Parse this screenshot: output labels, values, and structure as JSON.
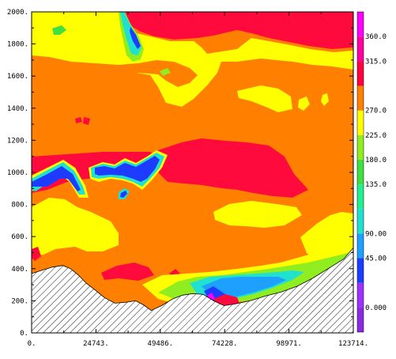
{
  "chart_data": {
    "type": "contour",
    "title": "",
    "xlabel": "",
    "ylabel": "",
    "xlim": [
      0,
      123714
    ],
    "ylim": [
      0,
      2000
    ],
    "x_ticks": [
      "0.",
      "24743.",
      "49486.",
      "74228.",
      "98971.",
      "123714."
    ],
    "y_ticks": [
      "0.",
      "200.",
      "400.",
      "600.",
      "800.",
      "1000.",
      "1200.",
      "1400.",
      "1600.",
      "1800.",
      "2000."
    ],
    "levels": [
      {
        "label": "0.000",
        "value": 0,
        "color": "#8a2be2"
      },
      {
        "label": "",
        "value": 22.5,
        "color": "#9b30ff"
      },
      {
        "label": "45.00",
        "value": 45,
        "color": "#1e3cff"
      },
      {
        "label": "90.00",
        "value": 90,
        "color": "#1ea0ff"
      },
      {
        "label": "",
        "value": 112.5,
        "color": "#20e0d0"
      },
      {
        "label": "135.0",
        "value": 135,
        "color": "#20f090"
      },
      {
        "label": "180.0",
        "value": 180,
        "color": "#40e040"
      },
      {
        "label": "225.0",
        "value": 225,
        "color": "#90ee20"
      },
      {
        "label": "270.0",
        "value": 270,
        "color": "#ffff00"
      },
      {
        "label": "",
        "value": 292.5,
        "color": "#ff7f00"
      },
      {
        "label": "315.0",
        "value": 315,
        "color": "#ff0040"
      },
      {
        "label": "360.0",
        "value": 360,
        "color": "#ff00a0"
      },
      {
        "label": "",
        "value": 405,
        "color": "#ff00ff"
      }
    ],
    "terrain": [
      [
        0,
        370
      ],
      [
        4000,
        390
      ],
      [
        8000,
        410
      ],
      [
        12000,
        420
      ],
      [
        15000,
        400
      ],
      [
        18000,
        360
      ],
      [
        21000,
        310
      ],
      [
        25000,
        260
      ],
      [
        28000,
        220
      ],
      [
        32000,
        185
      ],
      [
        36000,
        190
      ],
      [
        40000,
        200
      ],
      [
        43000,
        175
      ],
      [
        46000,
        140
      ],
      [
        50000,
        170
      ],
      [
        54000,
        210
      ],
      [
        58000,
        235
      ],
      [
        62000,
        245
      ],
      [
        66000,
        240
      ],
      [
        70000,
        200
      ],
      [
        74000,
        170
      ],
      [
        78000,
        180
      ],
      [
        84000,
        200
      ],
      [
        90000,
        230
      ],
      [
        96000,
        255
      ],
      [
        102000,
        290
      ],
      [
        108000,
        340
      ],
      [
        114000,
        400
      ],
      [
        120000,
        460
      ],
      [
        123714,
        530
      ]
    ]
  }
}
